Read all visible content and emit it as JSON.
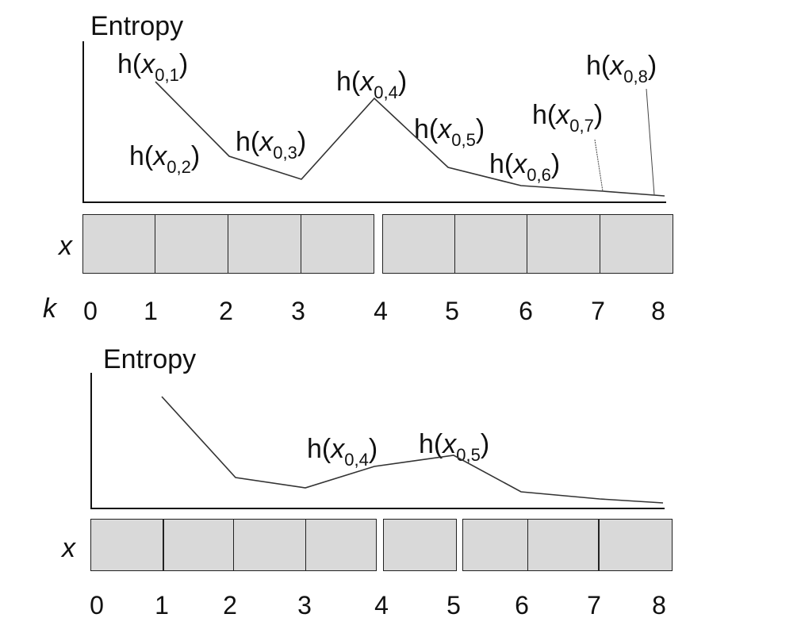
{
  "top": {
    "y_label": "Entropy",
    "row_label": "x",
    "index_label": "k",
    "ticks": [
      "0",
      "1",
      "2",
      "3",
      "4",
      "5",
      "6",
      "7",
      "8"
    ],
    "h_prefix": "h(",
    "h_var": "x",
    "h_suffix": ")",
    "h_subscripts": [
      "0,1",
      "0,2",
      "0,3",
      "0,4",
      "0,5",
      "0,6",
      "0,7",
      "0,8"
    ],
    "entropy_profile": [
      1,
      1.0,
      0.35,
      0.2,
      0.82,
      0.27,
      0.12,
      0.06,
      0.03
    ],
    "segments": [
      [
        0,
        4
      ],
      [
        4,
        8
      ]
    ]
  },
  "bottom": {
    "y_label": "Entropy",
    "row_label": "x",
    "ticks": [
      "0",
      "1",
      "2",
      "3",
      "4",
      "5",
      "6",
      "7",
      "8"
    ],
    "h_prefix": "h(",
    "h_var": "x",
    "h_suffix": ")",
    "h_subscripts": [
      "0,4",
      "0,5"
    ],
    "entropy_profile": [
      1,
      1.0,
      0.3,
      0.2,
      0.38,
      0.5,
      0.15,
      0.09,
      0.05
    ],
    "segments": [
      [
        0,
        1
      ],
      [
        1,
        4
      ],
      [
        4,
        5
      ],
      [
        5,
        6
      ],
      [
        6,
        8
      ]
    ]
  }
}
